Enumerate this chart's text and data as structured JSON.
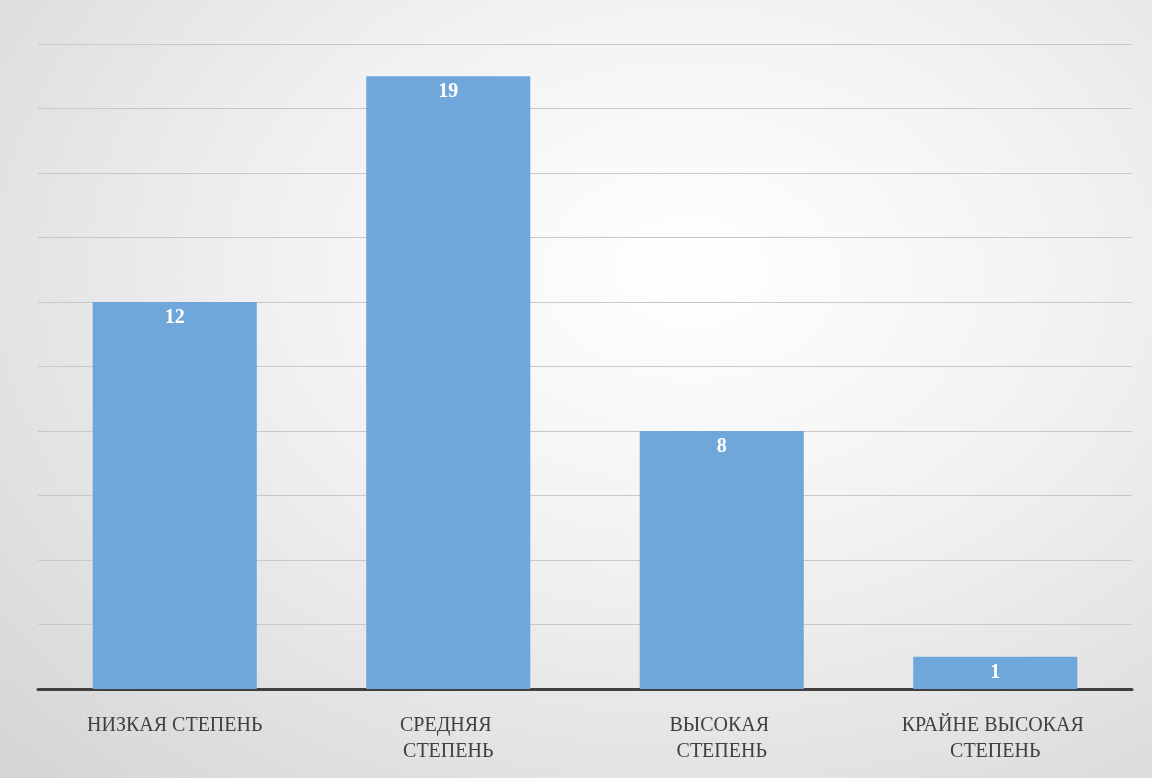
{
  "chart_data": {
    "type": "bar",
    "categories": [
      "НИЗКАЯ СТЕПЕНЬ",
      "СРЕДНЯЯ СТЕПЕНЬ",
      "ВЫСОКАЯ СТЕПЕНЬ",
      "КРАЙНЕ ВЫСОКАЯ СТЕПЕНЬ"
    ],
    "values": [
      12,
      19,
      8,
      1
    ],
    "color": "#70a7da",
    "data_labels": true,
    "grid": "y",
    "ylim": [
      0,
      20
    ],
    "yticks": [
      {
        "value": 0,
        "label": null
      },
      {
        "value": 2,
        "label": null
      },
      {
        "value": 4,
        "label": null
      },
      {
        "value": 6,
        "label": null
      },
      {
        "value": 8,
        "label": null
      },
      {
        "value": 10,
        "label": null
      },
      {
        "value": 12,
        "label": null
      },
      {
        "value": 14,
        "label": null
      },
      {
        "value": 16,
        "label": null
      },
      {
        "value": 18,
        "label": null
      },
      {
        "value": 20,
        "label": null
      }
    ],
    "tick_labels": "x"
  }
}
